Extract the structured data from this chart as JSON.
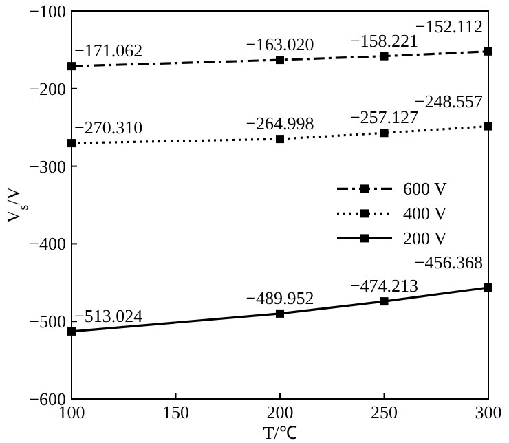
{
  "chart_data": {
    "type": "line",
    "xlabel": "T/℃",
    "ylabel": "V$_{s}$/V",
    "x": [
      100,
      200,
      250,
      300
    ],
    "xlim": [
      100,
      300
    ],
    "xticks": [
      100,
      150,
      200,
      250,
      300
    ],
    "ylim": [
      -600,
      -100
    ],
    "yticks": [
      {
        "value": -100,
        "label": "−100"
      },
      {
        "value": -200,
        "label": "−200"
      },
      {
        "value": -300,
        "label": "−300"
      },
      {
        "value": -400,
        "label": "−400"
      },
      {
        "value": -500,
        "label": "−500"
      },
      {
        "value": -600,
        "label": "−600"
      }
    ],
    "grid": false,
    "legend": "right",
    "marker": "square",
    "series": [
      {
        "name": "600 V",
        "color": "#000000",
        "line_style": "dashdot",
        "values": [
          -171.062,
          -163.02,
          -158.221,
          -152.112
        ],
        "value_labels": [
          "−171.062",
          "−163.020",
          "−158.221",
          "−152.112"
        ]
      },
      {
        "name": "400 V",
        "color": "#000000",
        "line_style": "dotted",
        "values": [
          -270.31,
          -264.998,
          -257.127,
          -248.557
        ],
        "value_labels": [
          "−270.310",
          "−264.998",
          "−257.127",
          "−248.557"
        ]
      },
      {
        "name": "200 V",
        "color": "#000000",
        "line_style": "solid",
        "values": [
          -513.024,
          -489.952,
          -474.213,
          -456.368
        ],
        "value_labels": [
          "−513.024",
          "−489.952",
          "−474.213",
          "−456.368"
        ]
      }
    ]
  }
}
